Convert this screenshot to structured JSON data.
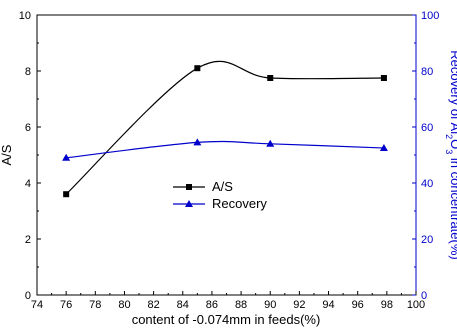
{
  "chart_data": {
    "type": "line",
    "title": "",
    "xlabel": "content of -0.074mm in feeds(%)",
    "ylabel_left": "A/S",
    "ylabel_right": "Recovery of Al2O3 in concentrate(%)",
    "xlim": [
      74,
      100
    ],
    "ylim_left": [
      0,
      10
    ],
    "ylim_right": [
      0,
      100
    ],
    "x_ticks": [
      "74",
      "76",
      "78",
      "80",
      "82",
      "84",
      "86",
      "88",
      "90",
      "92",
      "94",
      "96",
      "98",
      "100"
    ],
    "y_left_ticks": [
      "0",
      "2",
      "4",
      "6",
      "8",
      "10"
    ],
    "y_right_ticks": [
      "0",
      "20",
      "40",
      "60",
      "80",
      "100"
    ],
    "grid": false,
    "legend_position": "center",
    "series": [
      {
        "name": "A/S",
        "axis": "left",
        "marker": "square",
        "color": "#000000",
        "x": [
          76,
          85,
          90,
          97.8
        ],
        "values": [
          3.6,
          8.1,
          7.75,
          7.75
        ]
      },
      {
        "name": "Recovery",
        "axis": "right",
        "marker": "triangle",
        "color": "#0000cc",
        "x": [
          76,
          85,
          90,
          97.8
        ],
        "values": [
          49,
          54.5,
          54,
          52.5
        ]
      }
    ]
  }
}
